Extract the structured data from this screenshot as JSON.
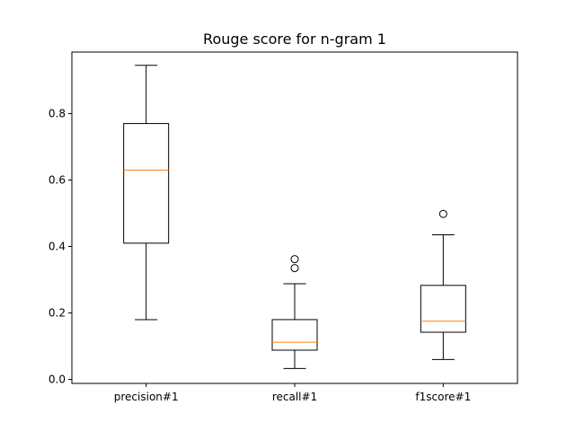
{
  "chart_data": {
    "type": "box",
    "title": "Rouge score for n-gram 1",
    "xlabel": "",
    "ylabel": "",
    "categories": [
      "precision#1",
      "recall#1",
      "f1score#1"
    ],
    "y_ticks": [
      "0.0",
      "0.2",
      "0.4",
      "0.6",
      "0.8"
    ],
    "ylim": [
      -0.012,
      0.985
    ],
    "grid": false,
    "boxes": [
      {
        "whisker_low": 0.18,
        "q1": 0.41,
        "median": 0.63,
        "q3": 0.77,
        "whisker_high": 0.945,
        "outliers": []
      },
      {
        "whisker_low": 0.033,
        "q1": 0.088,
        "median": 0.112,
        "q3": 0.18,
        "whisker_high": 0.288,
        "outliers": [
          0.335,
          0.362
        ]
      },
      {
        "whisker_low": 0.06,
        "q1": 0.142,
        "median": 0.175,
        "q3": 0.283,
        "whisker_high": 0.435,
        "outliers": [
          0.498
        ]
      }
    ],
    "colors": {
      "box": "#000000",
      "median": "#ff7f0e",
      "background": "#ffffff"
    }
  }
}
